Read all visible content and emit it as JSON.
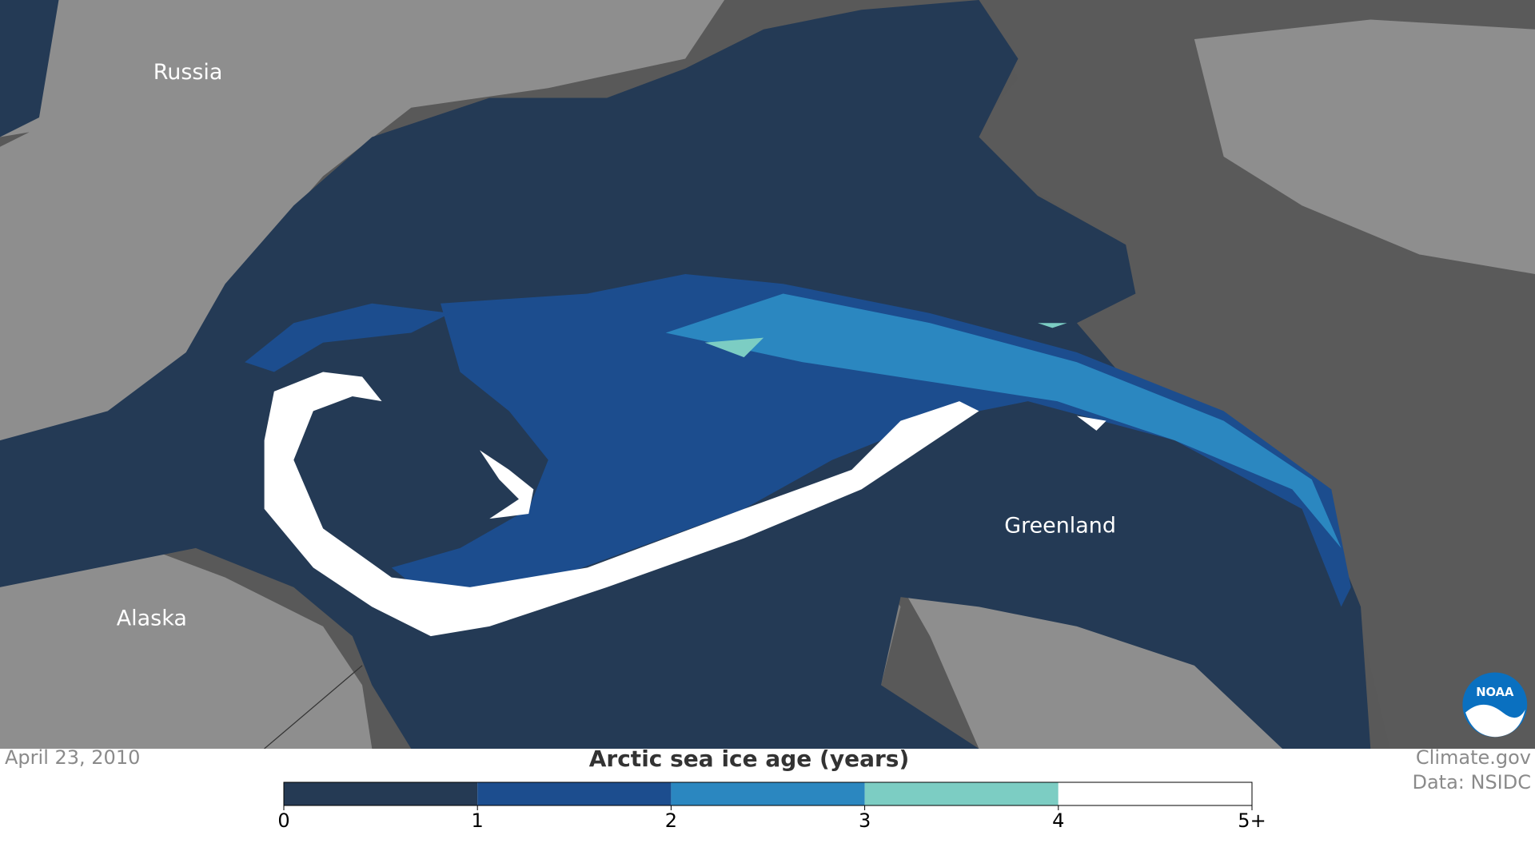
{
  "map": {
    "labels": [
      "Russia",
      "Alaska",
      "Greenland"
    ],
    "logo": "NOAA"
  },
  "legend": {
    "title": "Arctic sea ice age (years)",
    "ticks": [
      0,
      1,
      2,
      3,
      4,
      {
        "value": 5,
        "label": "5+"
      }
    ],
    "colors": [
      "#253a54",
      "#1c4d8e",
      "#2b87c0",
      "#7ccdc3",
      "#ffffff"
    ]
  },
  "footer": {
    "date": "April 23, 2010",
    "credits": [
      "Climate.gov",
      "Data: NSIDC"
    ]
  }
}
